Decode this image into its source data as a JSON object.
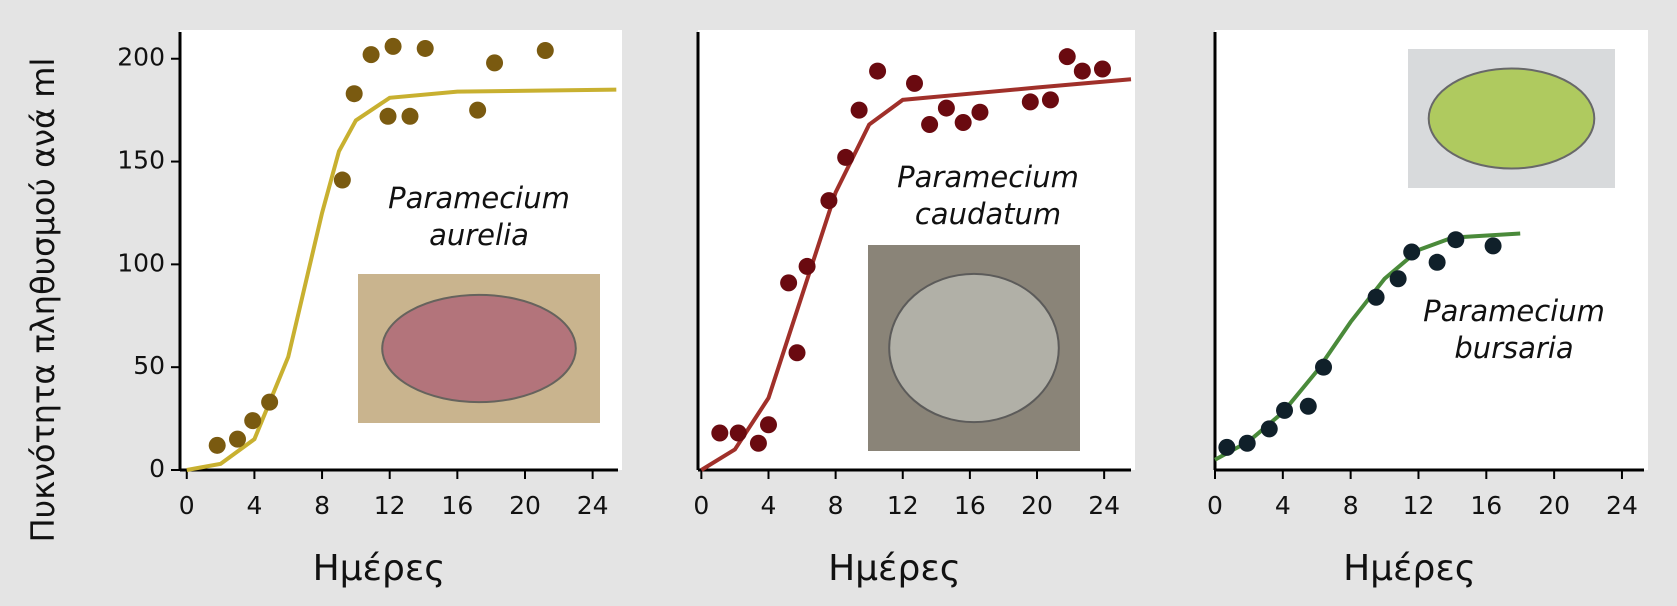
{
  "chart_data": [
    {
      "type": "scatter",
      "ylabel": "Πυκνότητα πληθυσμού ανά ml",
      "xlabel": "Ημέρες",
      "annotation": [
        "Paramecium",
        "aurelia"
      ],
      "xlim": [
        -0.4,
        25.5
      ],
      "ylim": [
        0,
        213
      ],
      "xticks": [
        0,
        4,
        8,
        12,
        16,
        20,
        24
      ],
      "yticks": [
        0,
        50,
        100,
        150,
        200
      ],
      "points": {
        "color": "#7a5a10",
        "x": [
          1.8,
          3.0,
          3.9,
          4.9,
          9.2,
          9.9,
          10.9,
          12.2,
          11.9,
          13.2,
          14.1,
          17.2,
          18.2,
          21.2
        ],
        "values": [
          12,
          15,
          24,
          33,
          141,
          183,
          202,
          206,
          172,
          172,
          205,
          175,
          198,
          204
        ]
      },
      "curve": {
        "color": "#c8b030",
        "x": [
          0,
          2,
          4,
          6,
          7,
          8,
          9,
          10,
          12,
          16,
          25.4
        ],
        "values": [
          0,
          3,
          15,
          55,
          90,
          125,
          155,
          170,
          181,
          184,
          185
        ]
      }
    },
    {
      "type": "scatter",
      "xlabel": "Ημέρες",
      "annotation": [
        "Paramecium",
        "caudatum"
      ],
      "xlim": [
        -0.2,
        25.6
      ],
      "ylim": [
        0,
        213
      ],
      "xticks": [
        0,
        4,
        8,
        12,
        16,
        20,
        24
      ],
      "points": {
        "color": "#6a0a10",
        "x": [
          1.1,
          2.2,
          3.4,
          4.0,
          5.2,
          5.7,
          6.3,
          7.6,
          8.6,
          9.4,
          10.5,
          12.7,
          13.6,
          14.6,
          15.6,
          16.6,
          19.6,
          20.8,
          21.8,
          22.7,
          23.9
        ],
        "values": [
          18,
          18,
          13,
          22,
          91,
          57,
          99,
          131,
          152,
          175,
          194,
          188,
          168,
          176,
          169,
          174,
          179,
          180,
          201,
          194,
          195
        ]
      },
      "curve": {
        "color": "#a0302a",
        "x": [
          0,
          2,
          4,
          6,
          8,
          10,
          12,
          16,
          20,
          25.6
        ],
        "values": [
          0,
          10,
          35,
          85,
          135,
          168,
          180,
          183,
          186,
          190
        ]
      }
    },
    {
      "type": "scatter",
      "xlabel": "Ημέρες",
      "annotation": [
        "Paramecium",
        "bursaria"
      ],
      "xlim": [
        0,
        25.3
      ],
      "ylim": [
        0,
        213
      ],
      "xticks": [
        0,
        4,
        8,
        12,
        16,
        20,
        24
      ],
      "points": {
        "color": "#10202a",
        "x": [
          0.7,
          1.9,
          3.2,
          4.1,
          5.5,
          6.4,
          9.5,
          10.8,
          11.6,
          13.1,
          14.2,
          16.4
        ],
        "values": [
          11,
          13,
          20,
          29,
          31,
          50,
          84,
          93,
          106,
          101,
          112,
          109
        ]
      },
      "curve": {
        "color": "#4a8a3a",
        "x": [
          0,
          2,
          4,
          6,
          8,
          10,
          12,
          14,
          18
        ],
        "values": [
          5,
          14,
          28,
          48,
          72,
          93,
          107,
          113,
          115
        ]
      }
    }
  ]
}
